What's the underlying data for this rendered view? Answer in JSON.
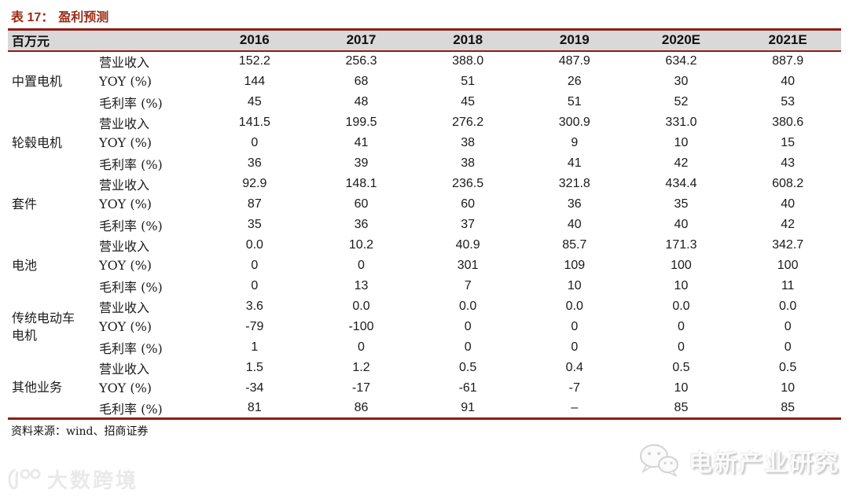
{
  "title": {
    "label": "表 17：",
    "name": "盈利预测"
  },
  "table": {
    "unit_header": "百万元",
    "year_headers": [
      "2016",
      "2017",
      "2018",
      "2019",
      "2020E",
      "2021E"
    ],
    "groups": [
      {
        "name": "中置电机",
        "rows": [
          {
            "metric": "营业收入",
            "values": [
              "152.2",
              "256.3",
              "388.0",
              "487.9",
              "634.2",
              "887.9"
            ]
          },
          {
            "metric": "YOY (%)",
            "values": [
              "144",
              "68",
              "51",
              "26",
              "30",
              "40"
            ]
          },
          {
            "metric": "毛利率 (%)",
            "values": [
              "45",
              "48",
              "45",
              "51",
              "52",
              "53"
            ]
          }
        ]
      },
      {
        "name": "轮毂电机",
        "rows": [
          {
            "metric": "营业收入",
            "values": [
              "141.5",
              "199.5",
              "276.2",
              "300.9",
              "331.0",
              "380.6"
            ]
          },
          {
            "metric": "YOY (%)",
            "values": [
              "0",
              "41",
              "38",
              "9",
              "10",
              "15"
            ]
          },
          {
            "metric": "毛利率 (%)",
            "values": [
              "36",
              "39",
              "38",
              "41",
              "42",
              "43"
            ]
          }
        ]
      },
      {
        "name": "套件",
        "rows": [
          {
            "metric": "营业收入",
            "values": [
              "92.9",
              "148.1",
              "236.5",
              "321.8",
              "434.4",
              "608.2"
            ]
          },
          {
            "metric": "YOY (%)",
            "values": [
              "87",
              "60",
              "60",
              "36",
              "35",
              "40"
            ]
          },
          {
            "metric": "毛利率 (%)",
            "values": [
              "35",
              "36",
              "37",
              "40",
              "40",
              "42"
            ]
          }
        ]
      },
      {
        "name": "电池",
        "rows": [
          {
            "metric": "营业收入",
            "values": [
              "0.0",
              "10.2",
              "40.9",
              "85.7",
              "171.3",
              "342.7"
            ]
          },
          {
            "metric": "YOY (%)",
            "values": [
              "0",
              "0",
              "301",
              "109",
              "100",
              "100"
            ]
          },
          {
            "metric": "毛利率 (%)",
            "values": [
              "0",
              "13",
              "7",
              "10",
              "10",
              "11"
            ]
          }
        ]
      },
      {
        "name": "传统电动车电机",
        "rows": [
          {
            "metric": "营业收入",
            "values": [
              "3.6",
              "0.0",
              "0.0",
              "0.0",
              "0.0",
              "0.0"
            ]
          },
          {
            "metric": "YOY (%)",
            "values": [
              "-79",
              "-100",
              "0",
              "0",
              "0",
              "0"
            ]
          },
          {
            "metric": "毛利率 (%)",
            "values": [
              "1",
              "0",
              "0",
              "0",
              "0",
              "0"
            ]
          }
        ]
      },
      {
        "name": "其他业务",
        "rows": [
          {
            "metric": "营业收入",
            "values": [
              "1.5",
              "1.2",
              "0.5",
              "0.4",
              "0.5",
              "0.5"
            ]
          },
          {
            "metric": "YOY (%)",
            "values": [
              "-34",
              "-17",
              "-61",
              "-7",
              "10",
              "10"
            ]
          },
          {
            "metric": "毛利率 (%)",
            "values": [
              "81",
              "86",
              "91",
              "–",
              "85",
              "85"
            ]
          }
        ]
      }
    ]
  },
  "source": "资料来源：wind、招商证券",
  "watermarks": {
    "bottom_left": "大数跨境",
    "bottom_right": "电新产业研究"
  },
  "colors": {
    "accent_line": "#8c1f14",
    "title_text": "#9b2c15",
    "header_bg": "#d9d9d9"
  }
}
